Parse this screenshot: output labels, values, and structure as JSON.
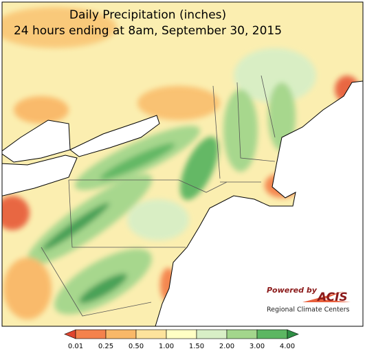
{
  "header": {
    "title": "Daily Precipitation (inches)",
    "subtitle": "24 hours ending at 8am, September 30, 2015"
  },
  "legend": {
    "colors": [
      "#e0452f",
      "#f4824c",
      "#f9b868",
      "#fde39c",
      "#ffffc4",
      "#d8efc6",
      "#a3d68c",
      "#5cb662",
      "#2f8f45"
    ],
    "labels": [
      "0.01",
      "0.25",
      "0.50",
      "1.00",
      "1.50",
      "2.00",
      "3.00",
      "4.00"
    ]
  },
  "logo": {
    "powered_by": "Powered by",
    "name": "ACIS",
    "org": "Regional Climate Centers"
  }
}
